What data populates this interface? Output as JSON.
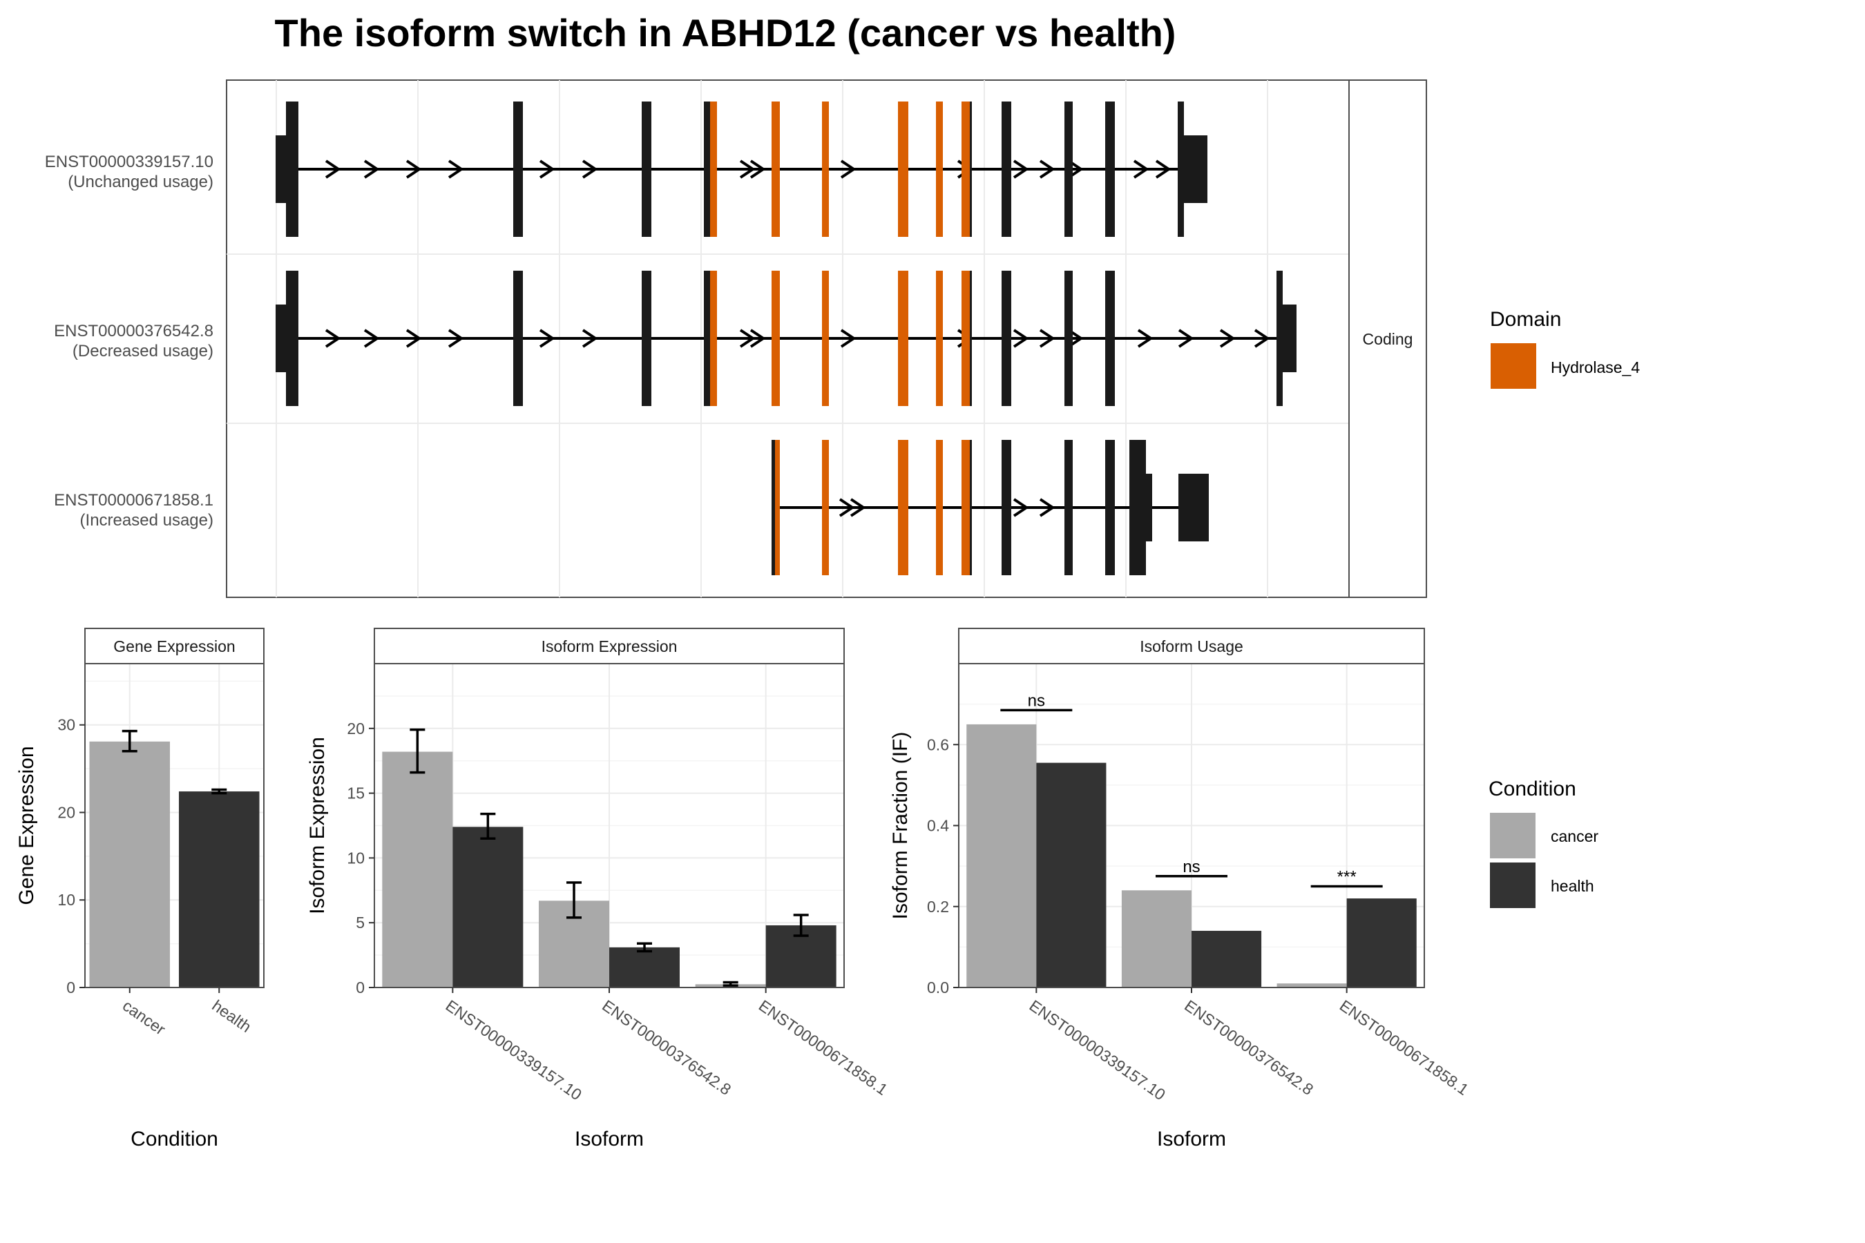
{
  "title": "The isoform switch in ABHD12 (cancer vs health)",
  "colors": {
    "cancer": "#a9a9a9",
    "health": "#333333",
    "domain": "#d95f02",
    "exon": "#1a1a1a",
    "grid": "#ebebeb",
    "panel_border": "#4d4d4d"
  },
  "structure": {
    "strip_label": "Coding",
    "isoforms": [
      {
        "id": "ENST00000339157.10",
        "usage": "(Unchanged usage)"
      },
      {
        "id": "ENST00000376542.8",
        "usage": "(Decreased usage)"
      },
      {
        "id": "ENST00000671858.1",
        "usage": "(Increased usage)"
      }
    ],
    "legend": {
      "title": "Domain",
      "items": [
        {
          "label": "Hydrolase_4",
          "color": "#d95f02"
        }
      ]
    }
  },
  "conditions_legend": {
    "title": "Condition",
    "items": [
      {
        "label": "cancer",
        "color": "#a9a9a9"
      },
      {
        "label": "health",
        "color": "#333333"
      }
    ]
  },
  "chart_data": [
    {
      "type": "bar",
      "strip": "Gene Expression",
      "xlabel": "Condition",
      "ylabel": "Gene Expression",
      "ylim": [
        0,
        37
      ],
      "yticks": [
        0,
        10,
        20,
        30
      ],
      "categories": [
        "cancer",
        "health"
      ],
      "values": [
        28.1,
        22.4
      ],
      "errors": [
        [
          27.0,
          29.3
        ],
        [
          22.2,
          22.6
        ]
      ]
    },
    {
      "type": "bar",
      "strip": "Isoform Expression",
      "xlabel": "Isoform",
      "ylabel": "Isoform Expression",
      "ylim": [
        0,
        25
      ],
      "yticks": [
        0,
        5,
        10,
        15,
        20
      ],
      "categories": [
        "ENST00000339157.10",
        "ENST00000376542.8",
        "ENST00000671858.1"
      ],
      "series": [
        {
          "name": "cancer",
          "values": [
            18.2,
            6.7,
            0.25
          ],
          "errors": [
            [
              16.6,
              19.9
            ],
            [
              5.4,
              8.1
            ],
            [
              0.15,
              0.4
            ]
          ]
        },
        {
          "name": "health",
          "values": [
            12.4,
            3.1,
            4.8
          ],
          "errors": [
            [
              11.5,
              13.4
            ],
            [
              2.8,
              3.4
            ],
            [
              4.0,
              5.6
            ]
          ]
        }
      ]
    },
    {
      "type": "bar",
      "strip": "Isoform Usage",
      "xlabel": "Isoform",
      "ylabel": "Isoform Fraction (IF)",
      "ylim": [
        0,
        0.8
      ],
      "yticks": [
        0.0,
        0.2,
        0.4,
        0.6
      ],
      "categories": [
        "ENST00000339157.10",
        "ENST00000376542.8",
        "ENST00000671858.1"
      ],
      "series": [
        {
          "name": "cancer",
          "values": [
            0.65,
            0.24,
            0.01
          ]
        },
        {
          "name": "health",
          "values": [
            0.555,
            0.14,
            0.22
          ]
        }
      ],
      "annotations": [
        {
          "category": "ENST00000339157.10",
          "label": "ns",
          "y": 0.685
        },
        {
          "category": "ENST00000376542.8",
          "label": "ns",
          "y": 0.275
        },
        {
          "category": "ENST00000671858.1",
          "label": "***",
          "y": 0.25
        }
      ]
    }
  ]
}
